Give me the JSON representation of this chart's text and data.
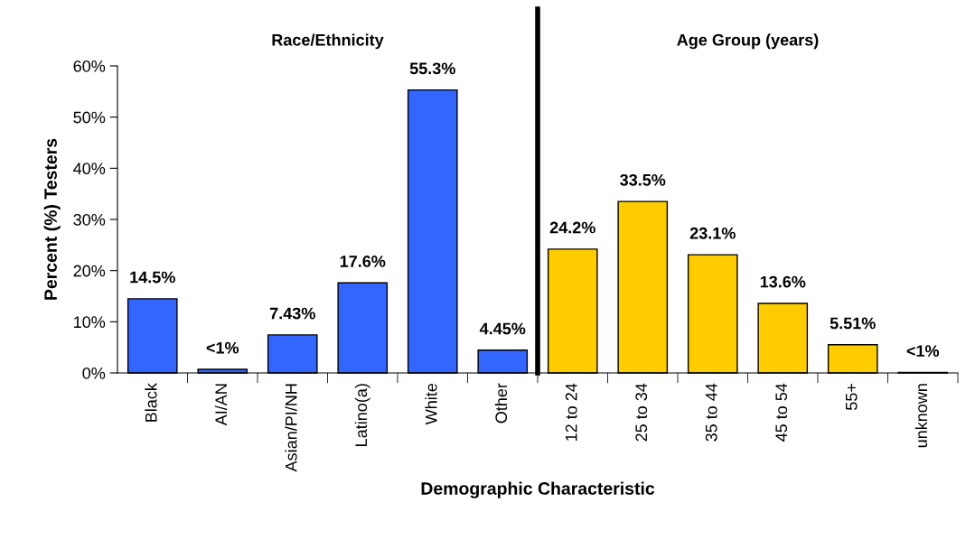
{
  "chart_data": {
    "type": "bar",
    "xlabel": "Demographic Characteristic",
    "ylabel": "Percent (%) Testers",
    "categories": [
      "Black",
      "AI/AN",
      "Asian/PI/NH",
      "Latino(a)",
      "White",
      "Other",
      "12 to 24",
      "25 to 34",
      "35 to 44",
      "45 to 54",
      "55+",
      "unknown"
    ],
    "values": [
      14.5,
      0.7,
      7.43,
      17.6,
      55.3,
      4.45,
      24.2,
      33.5,
      23.1,
      13.6,
      5.51,
      0.1
    ],
    "colors": [
      "#3366ff",
      "#3366ff",
      "#3366ff",
      "#3366ff",
      "#3366ff",
      "#3366ff",
      "#ffcc00",
      "#ffcc00",
      "#ffcc00",
      "#ffcc00",
      "#ffcc00",
      "#ffcc00"
    ],
    "value_labels": [
      "14.5%",
      "<1%",
      "7.43%",
      "17.6%",
      "55.3%",
      "4.45%",
      "24.2%",
      "33.5%",
      "23.1%",
      "13.6%",
      "5.51%",
      "<1%"
    ],
    "ylim": [
      0,
      60
    ],
    "yticks": [
      {
        "value": 0,
        "label": "0%"
      },
      {
        "value": 10,
        "label": "10%"
      },
      {
        "value": 20,
        "label": "20%"
      },
      {
        "value": 30,
        "label": "30%"
      },
      {
        "value": 40,
        "label": "40%"
      },
      {
        "value": 50,
        "label": "50%"
      },
      {
        "value": 60,
        "label": "60%"
      }
    ],
    "annotations": [
      "Race/Ethnicity",
      "Age Group (years)"
    ],
    "grid": false,
    "legend": false
  }
}
